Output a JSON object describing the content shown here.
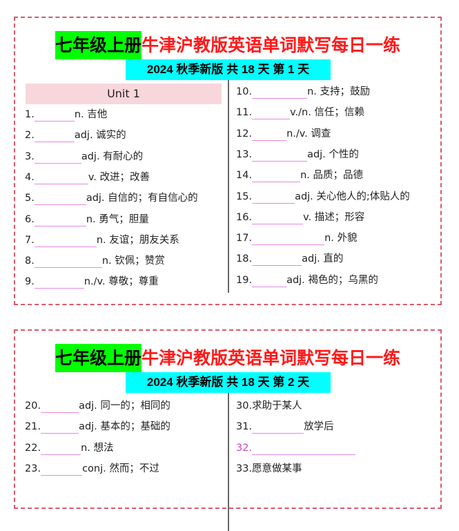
{
  "sheets": [
    {
      "title_highlight": "七年级上册",
      "title_rest": "牛津沪教版英语单词默写每日一练",
      "subtitle": "2024  秋季新版  共 18 天    第 1 天",
      "unit": "Unit 1",
      "left": [
        {
          "num": "1.",
          "text": "n. 吉他"
        },
        {
          "num": "2.",
          "text": "adj. 诚实的"
        },
        {
          "num": "3.",
          "text": "adj. 有耐心的"
        },
        {
          "num": "4.",
          "text": "v. 改进；改善"
        },
        {
          "num": "5.",
          "text": "adj. 自信的；有自信心的"
        },
        {
          "num": "6.",
          "text": "n. 勇气；胆量"
        },
        {
          "num": "7.",
          "text": "n. 友谊；朋友关系"
        },
        {
          "num": "8.",
          "text": "n. 钦佩；赞赏"
        },
        {
          "num": "9.",
          "text": "n./v. 尊敬；尊重"
        }
      ],
      "right": [
        {
          "num": "10.",
          "text": "n. 支持；鼓励"
        },
        {
          "num": "11.",
          "text": "v./n. 信任；信赖"
        },
        {
          "num": "12.",
          "text": "n./v. 调查"
        },
        {
          "num": "13.",
          "text": "adj. 个性的"
        },
        {
          "num": "14.",
          "text": "n. 品质；品德"
        },
        {
          "num": "15.",
          "text": "adj. 关心他人的;体贴人的"
        },
        {
          "num": "16.",
          "text": "v. 描述；形容"
        },
        {
          "num": "17.",
          "text": "n. 外貌"
        },
        {
          "num": "18.",
          "text": "adj. 直的"
        },
        {
          "num": "19.",
          "text": "adj. 褐色的；乌黑的"
        }
      ]
    },
    {
      "title_highlight": "七年级上册",
      "title_rest": "牛津沪教版英语单词默写每日一练",
      "subtitle": "2024  秋季新版  共 18 天    第 2 天",
      "left": [
        {
          "num": "20.",
          "text": "adj. 同一的；相同的"
        },
        {
          "num": "21.",
          "text": "adj. 基本的；基础的"
        },
        {
          "num": "22.",
          "text": "n. 想法"
        },
        {
          "num": "23.",
          "text": "conj. 然而；不过"
        }
      ],
      "right": [
        {
          "num": "30.",
          "text": "求助于某人"
        },
        {
          "num": "31.",
          "text": "放学后"
        },
        {
          "num": "32.",
          "text": ""
        },
        {
          "num": "33.",
          "text": "愿意做某事"
        }
      ]
    }
  ],
  "colors": {
    "border": "#d9586a",
    "title_highlight": "#00ff00",
    "title_text": "#ff1a1a",
    "subtitle_bg": "#00ffff",
    "unit_bg": "#f8d7dc",
    "blank_line": "#e887e0"
  }
}
